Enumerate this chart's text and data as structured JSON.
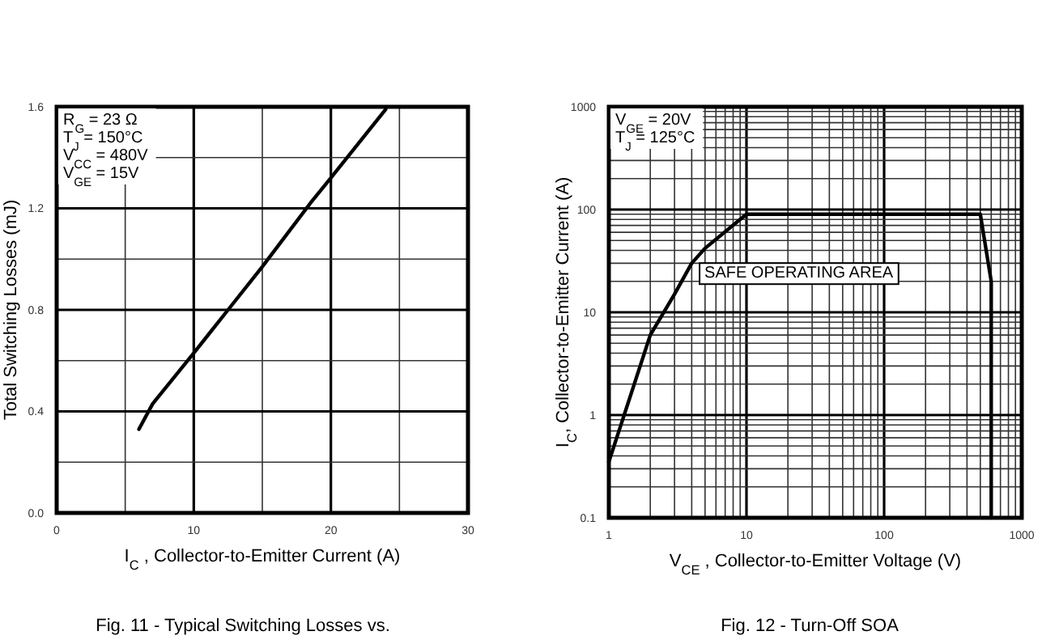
{
  "chart_data": [
    {
      "type": "line",
      "title": "Fig. 11 - Typical Switching Losses vs.",
      "xlabel": "I$_{C}$ , Collector-to-Emitter Current (A)",
      "ylabel": "Total Switching Losses (mJ)",
      "annotations": [
        "R$_{G}$  = 23 Ω",
        "T$_{J}$   = 150°C",
        "V$_{CC}$ = 480V",
        "V$_{GE}$ = 15V"
      ],
      "series": [
        {
          "color": "#000000",
          "x": [
            6,
            7,
            10,
            12.5,
            15,
            18.5,
            20,
            24
          ],
          "values": [
            0.33,
            0.43,
            0.63,
            0.8,
            0.97,
            1.22,
            1.32,
            1.59
          ]
        }
      ],
      "xlim": [
        0,
        30
      ],
      "xticks": [
        0,
        10,
        20,
        30
      ],
      "ylim": [
        0,
        1.6
      ],
      "yticks": [
        {
          "value": 0,
          "label": "0.0"
        },
        0.4,
        0.8,
        1.2,
        1.6
      ],
      "grid": true
    },
    {
      "type": "line",
      "title": "Fig. 12 - Turn-Off SOA",
      "xlabel": "V$_{CE}$ , Collector-to-Emitter Voltage (V)",
      "ylabel": "I$_{C}$, Collector-to-Emitter Current (A)",
      "annotations": [
        "V$_{GE}$ = 20V",
        "T$_{J}$   = 125°C",
        "SAFE OPERATING AREA"
      ],
      "series": [
        {
          "color": "#000000",
          "x": [
            1,
            2,
            3,
            4,
            5,
            10,
            500,
            600,
            600
          ],
          "values": [
            0.35,
            6,
            15,
            30,
            42,
            90,
            90,
            20,
            0.1
          ]
        }
      ],
      "xlim": [
        1,
        1000
      ],
      "xticks": [
        1,
        10,
        100,
        1000
      ],
      "ylim": [
        0.1,
        1000
      ],
      "yticks": [
        0.1,
        1,
        10,
        100,
        1000
      ],
      "log": "xy",
      "grid": true
    }
  ]
}
